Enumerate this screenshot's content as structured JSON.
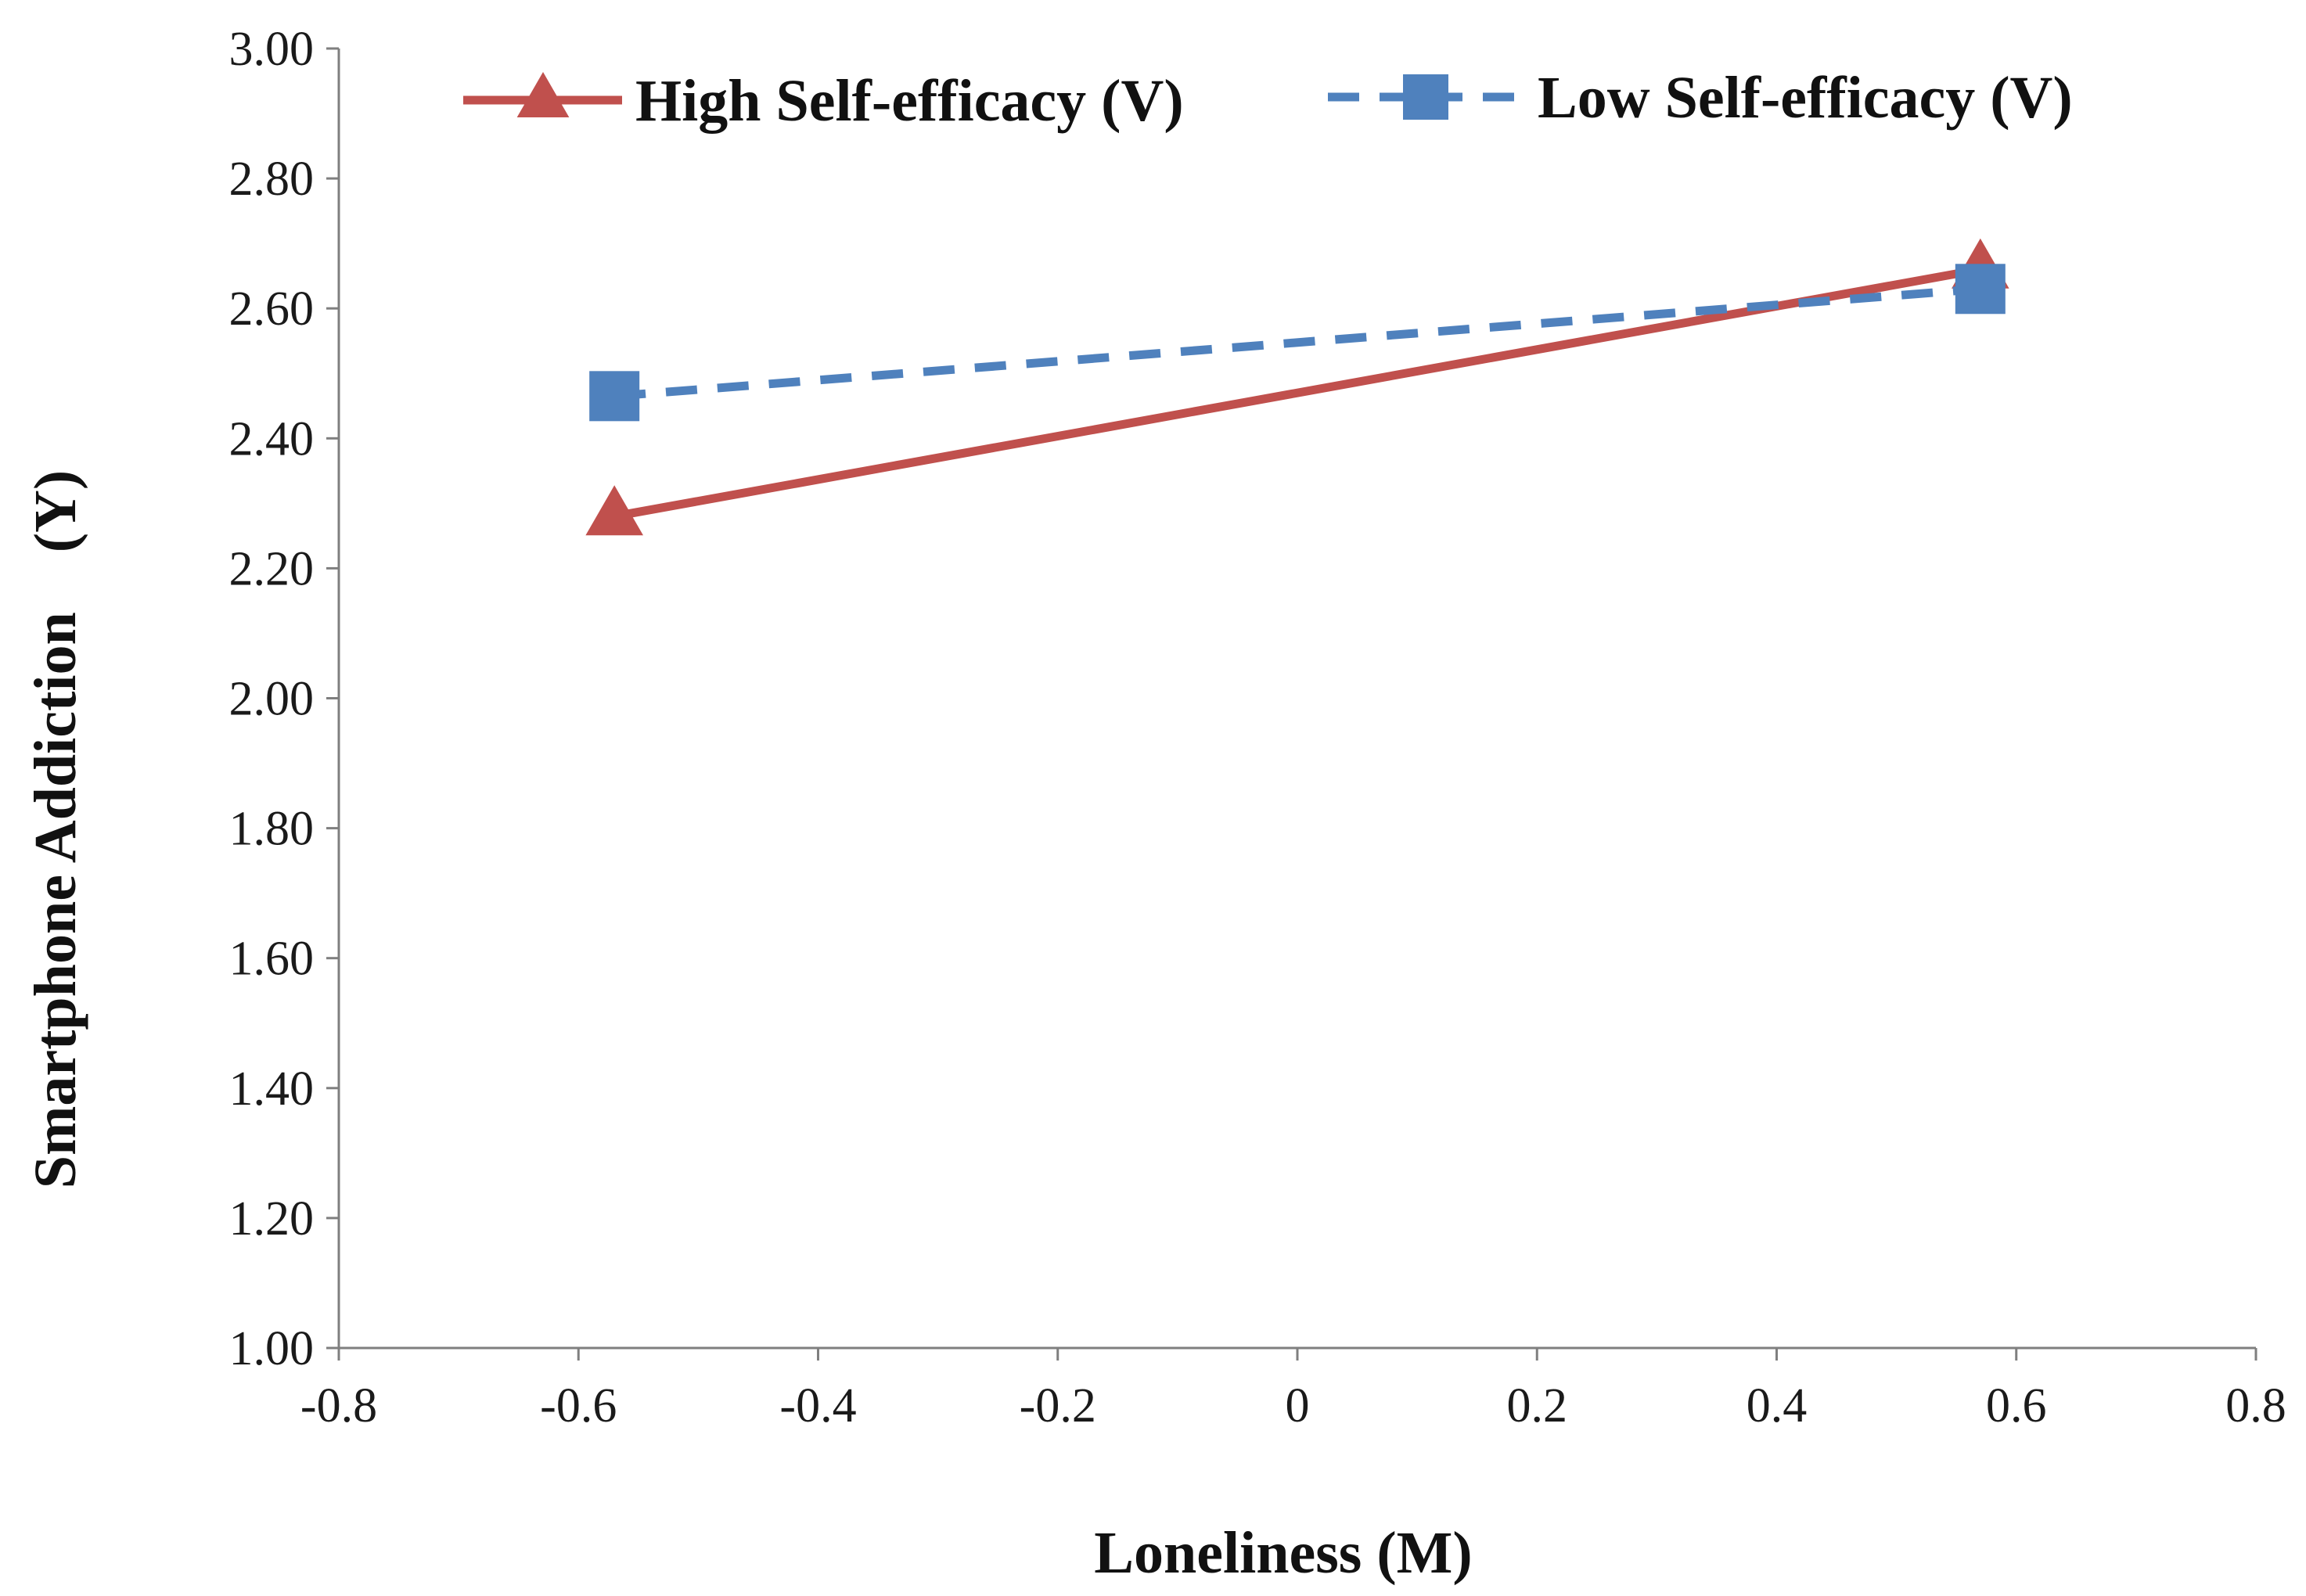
{
  "chart_data": {
    "type": "line",
    "title": "",
    "xlabel": "Loneliness (M)",
    "ylabel": "Smartphone Addiction    (Y)",
    "xlim": [
      -0.8,
      0.8
    ],
    "ylim": [
      1.0,
      3.0
    ],
    "x_ticks": [
      -0.8,
      -0.6,
      -0.4,
      -0.2,
      0,
      0.2,
      0.4,
      0.6,
      0.8
    ],
    "x_tick_labels": [
      "-0.8",
      "-0.6",
      "-0.4",
      "-0.2",
      "0",
      "0.2",
      "0.4",
      "0.6",
      "0.8"
    ],
    "y_ticks": [
      1.0,
      1.2,
      1.4,
      1.6,
      1.8,
      2.0,
      2.2,
      2.4,
      2.6,
      2.8,
      3.0
    ],
    "y_tick_labels": [
      "1.00",
      "1.20",
      "1.40",
      "1.60",
      "1.80",
      "2.00",
      "2.20",
      "2.40",
      "2.60",
      "2.80",
      "3.00"
    ],
    "grid": false,
    "legend_position": "top",
    "series": [
      {
        "name": "High Self-efficacy (V)",
        "x": [
          -0.57,
          0.57
        ],
        "y": [
          2.28,
          2.66
        ],
        "color": "#c0504d",
        "marker": "triangle",
        "line_style": "solid"
      },
      {
        "name": "Low Self-efficacy (V)",
        "x": [
          -0.57,
          0.57
        ],
        "y": [
          2.465,
          2.63
        ],
        "color": "#4f81bd",
        "marker": "square",
        "line_style": "dashed"
      }
    ]
  }
}
